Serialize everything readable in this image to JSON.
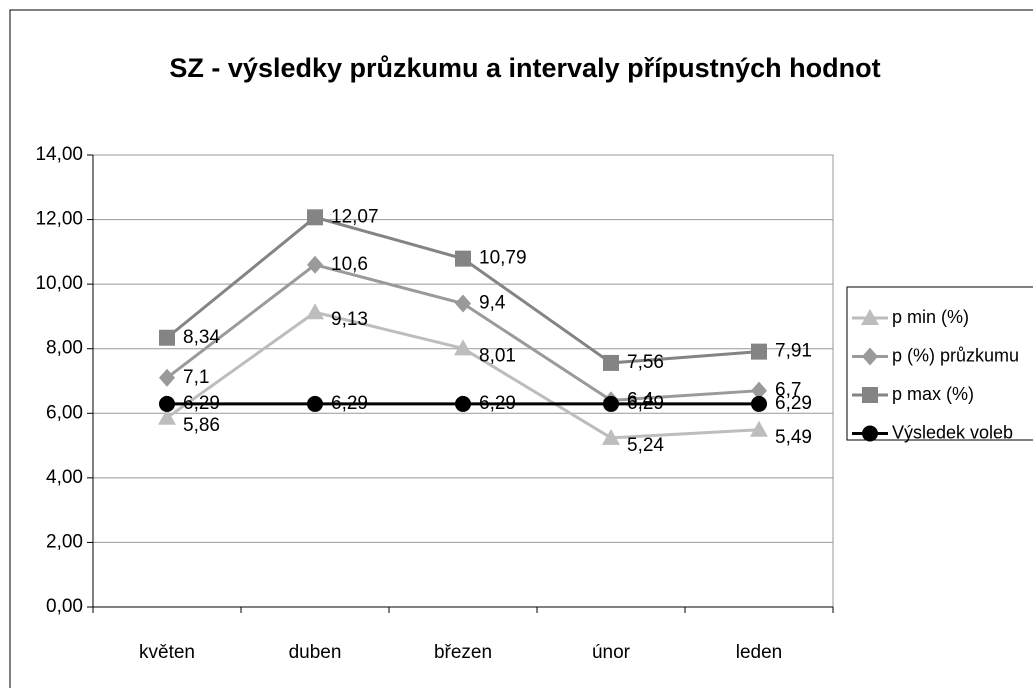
{
  "chart_data": {
    "type": "line",
    "title": "SZ - výsledky průzkumu a intervaly přípustných hodnot",
    "categories": [
      "květen",
      "duben",
      "březen",
      "únor",
      "leden"
    ],
    "ylim": [
      0,
      14
    ],
    "yticks": [
      {
        "value": 0,
        "label": "0,00"
      },
      {
        "value": 2,
        "label": "2,00"
      },
      {
        "value": 4,
        "label": "4,00"
      },
      {
        "value": 6,
        "label": "6,00"
      },
      {
        "value": 8,
        "label": "8,00"
      },
      {
        "value": 10,
        "label": "10,00"
      },
      {
        "value": 12,
        "label": "12,00"
      },
      {
        "value": 14,
        "label": "14,00"
      }
    ],
    "grid": true,
    "legend": "right",
    "series": [
      {
        "name": "p min (%)",
        "color": "#bdbdbd",
        "marker": "triangle",
        "values": [
          5.86,
          9.13,
          8.01,
          5.24,
          5.49
        ],
        "value_labels": [
          "5,86",
          "9,13",
          "8,01",
          "5,24",
          "5,49"
        ]
      },
      {
        "name": "p (%) průzkumu",
        "color": "#9a9a9a",
        "marker": "diamond",
        "values": [
          7.1,
          10.6,
          9.4,
          6.4,
          6.7
        ],
        "value_labels": [
          "7,1",
          "10,6",
          "9,4",
          "6,4",
          "6,7"
        ]
      },
      {
        "name": "p max (%)",
        "color": "#848484",
        "marker": "square",
        "values": [
          8.34,
          12.07,
          10.79,
          7.56,
          7.91
        ],
        "value_labels": [
          "8,34",
          "12,07",
          "10,79",
          "7,56",
          "7,91"
        ]
      },
      {
        "name": "Výsledek voleb",
        "color": "#000000",
        "marker": "circle",
        "values": [
          6.29,
          6.29,
          6.29,
          6.29,
          6.29
        ],
        "value_labels": [
          "6,29",
          "6,29",
          "6,29",
          "6,29",
          "6,29"
        ]
      }
    ]
  }
}
